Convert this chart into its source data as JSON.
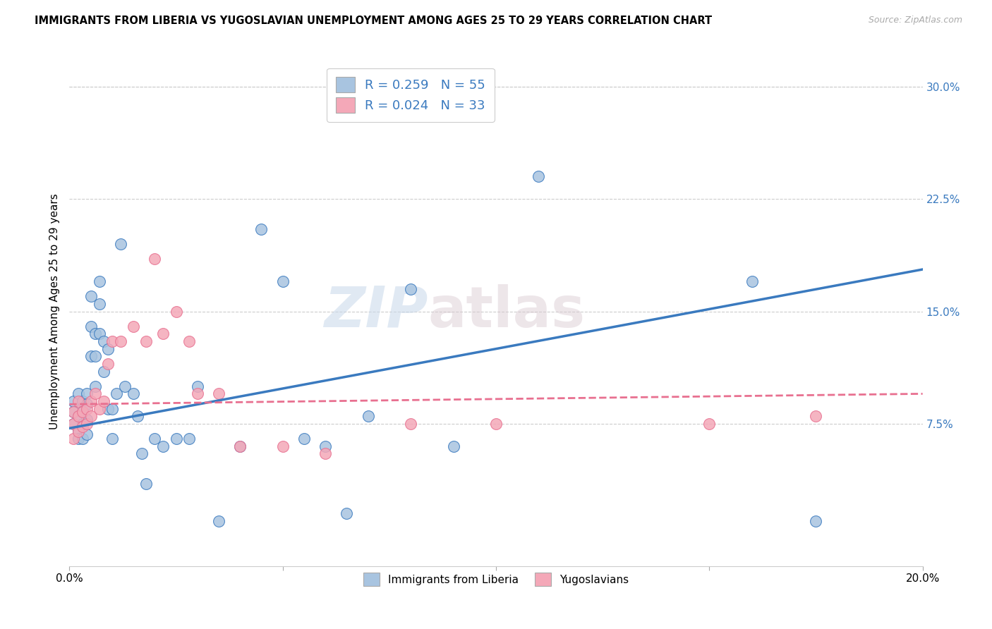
{
  "title": "IMMIGRANTS FROM LIBERIA VS YUGOSLAVIAN UNEMPLOYMENT AMONG AGES 25 TO 29 YEARS CORRELATION CHART",
  "source": "Source: ZipAtlas.com",
  "ylabel": "Unemployment Among Ages 25 to 29 years",
  "xlabel": "",
  "xlim": [
    0.0,
    0.2
  ],
  "ylim": [
    -0.02,
    0.32
  ],
  "xticks": [
    0.0,
    0.05,
    0.1,
    0.15,
    0.2
  ],
  "xticklabels": [
    "0.0%",
    "",
    "",
    "",
    "20.0%"
  ],
  "right_yticks": [
    0.075,
    0.15,
    0.225,
    0.3
  ],
  "right_yticklabels": [
    "7.5%",
    "15.0%",
    "22.5%",
    "30.0%"
  ],
  "legend1_label": "R = 0.259   N = 55",
  "legend2_label": "R = 0.024   N = 33",
  "series1_color": "#a8c4e0",
  "series2_color": "#f4a8b8",
  "line1_color": "#3a7abf",
  "line2_color": "#e87090",
  "watermark_left": "ZIP",
  "watermark_right": "atlas",
  "series1_name": "Immigrants from Liberia",
  "series2_name": "Yugoslavians",
  "blue_x": [
    0.001,
    0.001,
    0.001,
    0.002,
    0.002,
    0.002,
    0.002,
    0.003,
    0.003,
    0.003,
    0.003,
    0.004,
    0.004,
    0.004,
    0.004,
    0.005,
    0.005,
    0.005,
    0.006,
    0.006,
    0.006,
    0.007,
    0.007,
    0.007,
    0.008,
    0.008,
    0.009,
    0.009,
    0.01,
    0.01,
    0.011,
    0.012,
    0.013,
    0.015,
    0.016,
    0.017,
    0.018,
    0.02,
    0.022,
    0.025,
    0.028,
    0.03,
    0.035,
    0.04,
    0.045,
    0.05,
    0.055,
    0.06,
    0.065,
    0.07,
    0.08,
    0.09,
    0.11,
    0.16,
    0.175
  ],
  "blue_y": [
    0.09,
    0.083,
    0.075,
    0.095,
    0.08,
    0.07,
    0.065,
    0.09,
    0.083,
    0.075,
    0.065,
    0.095,
    0.088,
    0.078,
    0.068,
    0.16,
    0.14,
    0.12,
    0.135,
    0.12,
    0.1,
    0.17,
    0.155,
    0.135,
    0.13,
    0.11,
    0.125,
    0.085,
    0.085,
    0.065,
    0.095,
    0.195,
    0.1,
    0.095,
    0.08,
    0.055,
    0.035,
    0.065,
    0.06,
    0.065,
    0.065,
    0.1,
    0.01,
    0.06,
    0.205,
    0.17,
    0.065,
    0.06,
    0.015,
    0.08,
    0.165,
    0.06,
    0.24,
    0.17,
    0.01
  ],
  "pink_x": [
    0.001,
    0.001,
    0.001,
    0.002,
    0.002,
    0.002,
    0.003,
    0.003,
    0.004,
    0.004,
    0.005,
    0.005,
    0.006,
    0.007,
    0.008,
    0.009,
    0.01,
    0.012,
    0.015,
    0.018,
    0.02,
    0.022,
    0.025,
    0.028,
    0.03,
    0.035,
    0.04,
    0.05,
    0.06,
    0.08,
    0.1,
    0.15,
    0.175
  ],
  "pink_y": [
    0.083,
    0.075,
    0.065,
    0.09,
    0.08,
    0.07,
    0.083,
    0.073,
    0.085,
    0.075,
    0.09,
    0.08,
    0.095,
    0.085,
    0.09,
    0.115,
    0.13,
    0.13,
    0.14,
    0.13,
    0.185,
    0.135,
    0.15,
    0.13,
    0.095,
    0.095,
    0.06,
    0.06,
    0.055,
    0.075,
    0.075,
    0.075,
    0.08
  ],
  "blue_line_x": [
    0.0,
    0.2
  ],
  "blue_line_y": [
    0.072,
    0.178
  ],
  "pink_line_x": [
    0.0,
    0.2
  ],
  "pink_line_y": [
    0.088,
    0.095
  ]
}
